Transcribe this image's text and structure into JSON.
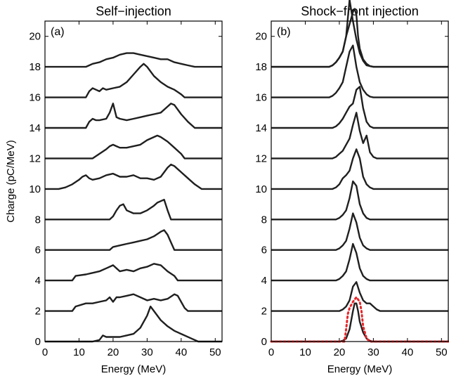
{
  "chart_data": [
    {
      "type": "line",
      "title": "Self−injection",
      "panel_label": "(a)",
      "xlabel": "Energy (MeV)",
      "ylabel": "Charge (pC/MeV)",
      "xlim": [
        0,
        52
      ],
      "ylim": [
        0,
        21
      ],
      "xticks": [
        "0",
        "10",
        "20",
        "30",
        "40",
        "50"
      ],
      "yticks": [
        "0",
        "2",
        "4",
        "6",
        "8",
        "10",
        "12",
        "14",
        "16",
        "18",
        "20"
      ],
      "line_color": "#1f1f1f",
      "series": [
        {
          "offset": 0,
          "x": [
            0,
            14,
            16,
            17,
            18,
            20,
            22,
            24,
            26,
            28,
            30,
            31,
            32,
            34,
            36,
            38,
            40,
            43,
            45,
            52
          ],
          "y": [
            0,
            0,
            0.1,
            0.4,
            0.3,
            0.3,
            0.3,
            0.4,
            0.5,
            0.9,
            1.7,
            2.3,
            2.0,
            1.4,
            1.0,
            0.7,
            0.5,
            0.2,
            0,
            0
          ]
        },
        {
          "offset": 2,
          "x": [
            0,
            8,
            9,
            12,
            14,
            16,
            18,
            19,
            20,
            21,
            22,
            24,
            26,
            28,
            30,
            32,
            34,
            36,
            38,
            39,
            40,
            41,
            42,
            52
          ],
          "y": [
            0,
            0,
            0.3,
            0.5,
            0.5,
            0.6,
            0.7,
            0.9,
            0.6,
            0.9,
            0.9,
            1.0,
            1.1,
            0.9,
            0.7,
            0.8,
            0.7,
            0.8,
            1.1,
            1.0,
            0.6,
            0.2,
            0,
            0
          ]
        },
        {
          "offset": 4,
          "x": [
            0,
            8,
            9,
            12,
            14,
            16,
            18,
            20,
            21,
            22,
            24,
            26,
            28,
            30,
            32,
            34,
            36,
            38,
            39,
            52
          ],
          "y": [
            0,
            0,
            0.3,
            0.4,
            0.5,
            0.6,
            0.8,
            1.0,
            0.8,
            0.6,
            0.7,
            0.6,
            0.8,
            0.9,
            1.1,
            1.0,
            0.6,
            0.3,
            0,
            0
          ]
        },
        {
          "offset": 6,
          "x": [
            0,
            19,
            20,
            22,
            24,
            26,
            28,
            30,
            32,
            34,
            35,
            36,
            37,
            38,
            52
          ],
          "y": [
            0,
            0,
            0.2,
            0.3,
            0.4,
            0.5,
            0.6,
            0.7,
            0.9,
            1.2,
            1.3,
            1.0,
            0.5,
            0,
            0
          ]
        },
        {
          "offset": 8,
          "x": [
            0,
            19,
            20,
            21,
            22,
            23,
            24,
            26,
            28,
            30,
            32,
            33,
            34,
            35,
            36,
            37,
            52
          ],
          "y": [
            0,
            0,
            0.2,
            0.6,
            0.9,
            1.0,
            0.6,
            0.4,
            0.4,
            0.6,
            0.9,
            1.1,
            1.2,
            1.3,
            0.6,
            0,
            0
          ]
        },
        {
          "offset": 10,
          "x": [
            0,
            4,
            6,
            8,
            10,
            11,
            12,
            13,
            14,
            16,
            18,
            20,
            22,
            24,
            26,
            28,
            30,
            32,
            34,
            36,
            37,
            38,
            40,
            42,
            44,
            46,
            52
          ],
          "y": [
            0,
            0,
            0.1,
            0.3,
            0.6,
            0.8,
            0.9,
            0.7,
            0.6,
            0.7,
            0.9,
            1.0,
            0.8,
            0.8,
            0.9,
            0.7,
            0.7,
            0.6,
            0.8,
            1.4,
            1.6,
            1.5,
            1.1,
            0.7,
            0.3,
            0,
            0
          ]
        },
        {
          "offset": 12,
          "x": [
            0,
            14,
            16,
            18,
            19,
            20,
            21,
            22,
            24,
            26,
            28,
            30,
            32,
            33,
            34,
            36,
            38,
            40,
            41,
            52
          ],
          "y": [
            0,
            0,
            0.3,
            0.6,
            0.8,
            0.9,
            0.8,
            0.7,
            0.7,
            0.8,
            0.9,
            1.2,
            1.4,
            1.5,
            1.4,
            1.1,
            0.7,
            0.3,
            0,
            0
          ]
        },
        {
          "offset": 14,
          "x": [
            0,
            12,
            13,
            14,
            15,
            16,
            18,
            19,
            20,
            21,
            22,
            24,
            26,
            28,
            30,
            32,
            34,
            36,
            37,
            38,
            40,
            42,
            44,
            52
          ],
          "y": [
            0,
            0,
            0.4,
            0.6,
            0.5,
            0.5,
            0.6,
            1.0,
            1.6,
            0.7,
            0.6,
            0.5,
            0.6,
            0.7,
            0.8,
            0.9,
            1.0,
            1.4,
            1.6,
            1.5,
            0.9,
            0.4,
            0,
            0
          ]
        },
        {
          "offset": 16,
          "x": [
            0,
            12,
            13,
            14,
            15,
            16,
            17,
            18,
            20,
            22,
            24,
            26,
            28,
            29,
            30,
            32,
            34,
            36,
            38,
            40,
            41,
            52
          ],
          "y": [
            0,
            0,
            0.4,
            0.6,
            0.5,
            0.4,
            0.6,
            0.5,
            0.6,
            0.7,
            1.0,
            1.5,
            2.0,
            2.2,
            2.0,
            1.4,
            1.0,
            0.7,
            0.5,
            0.2,
            0,
            0
          ]
        },
        {
          "offset": 18,
          "x": [
            0,
            12,
            13,
            14,
            16,
            18,
            20,
            22,
            24,
            26,
            28,
            30,
            32,
            34,
            36,
            38,
            40,
            42,
            44,
            46,
            52
          ],
          "y": [
            0,
            0,
            0.1,
            0.2,
            0.3,
            0.5,
            0.6,
            0.8,
            0.9,
            0.9,
            0.8,
            0.7,
            0.6,
            0.5,
            0.5,
            0.3,
            0.2,
            0.1,
            0,
            0,
            0
          ]
        }
      ]
    },
    {
      "type": "line",
      "title": "Shock−front injection",
      "panel_label": "(b)",
      "xlabel": "Energy (MeV)",
      "ylabel": "",
      "xlim": [
        0,
        52
      ],
      "ylim": [
        0,
        21
      ],
      "xticks": [
        "0",
        "10",
        "20",
        "30",
        "40",
        "50"
      ],
      "yticks": [
        "0",
        "2",
        "4",
        "6",
        "8",
        "10",
        "12",
        "14",
        "16",
        "18",
        "20"
      ],
      "line_color": "#1f1f1f",
      "dotted_color": "#e8262a",
      "series": [
        {
          "offset": 0,
          "x": [
            0,
            20,
            21,
            22,
            23,
            24,
            24.5,
            25,
            25.5,
            26,
            27,
            28,
            29,
            30,
            31,
            32,
            52
          ],
          "y": [
            0,
            0,
            0.05,
            0.2,
            0.8,
            2.0,
            2.5,
            2.5,
            2.0,
            1.3,
            0.6,
            0.2,
            0.05,
            0,
            0,
            0,
            0
          ]
        },
        {
          "offset": 2,
          "x": [
            0,
            20,
            21,
            22,
            23,
            24,
            25,
            26,
            27,
            28,
            29,
            30,
            31,
            32,
            52
          ],
          "y": [
            0,
            0,
            0.1,
            0.3,
            0.7,
            1.6,
            1.9,
            1.2,
            0.7,
            0.5,
            0.5,
            0.3,
            0.1,
            0,
            0
          ]
        },
        {
          "offset": 4,
          "x": [
            0,
            19,
            20,
            21,
            22,
            23,
            24,
            25,
            26,
            27,
            28,
            29,
            52
          ],
          "y": [
            0,
            0,
            0.1,
            0.3,
            0.6,
            1.4,
            2.4,
            1.8,
            0.8,
            0.3,
            0.1,
            0,
            0
          ]
        },
        {
          "offset": 6,
          "x": [
            0,
            19,
            20,
            21,
            22,
            23,
            24,
            25,
            26,
            27,
            28,
            29,
            52
          ],
          "y": [
            0,
            0,
            0.1,
            0.3,
            0.6,
            1.4,
            2.4,
            1.8,
            0.8,
            0.3,
            0.1,
            0,
            0
          ]
        },
        {
          "offset": 8,
          "x": [
            0,
            19,
            20,
            21,
            22,
            23,
            24,
            25,
            26,
            27,
            28,
            29,
            52
          ],
          "y": [
            0,
            0,
            0.1,
            0.3,
            0.6,
            1.4,
            2.5,
            2.2,
            1.0,
            0.4,
            0.1,
            0,
            0
          ]
        },
        {
          "offset": 10,
          "x": [
            0,
            18,
            19,
            20,
            21,
            22,
            23,
            24,
            25,
            26,
            27,
            28,
            29,
            30,
            52
          ],
          "y": [
            0,
            0,
            0.1,
            0.3,
            0.7,
            0.9,
            1.2,
            2.0,
            2.6,
            2.0,
            0.8,
            0.3,
            0.1,
            0,
            0
          ]
        },
        {
          "offset": 12,
          "x": [
            0,
            18,
            19,
            20,
            21,
            22,
            23,
            24,
            25,
            26,
            27,
            28,
            29,
            30,
            31,
            52
          ],
          "y": [
            0,
            0,
            0.1,
            0.3,
            0.5,
            0.9,
            1.3,
            2.2,
            3.0,
            1.8,
            1.0,
            1.5,
            0.4,
            0.1,
            0,
            0
          ]
        },
        {
          "offset": 14,
          "x": [
            0,
            18,
            19,
            20,
            21,
            22,
            23,
            24,
            25,
            26,
            27,
            28,
            29,
            30,
            52
          ],
          "y": [
            0,
            0,
            0.1,
            0.3,
            0.6,
            1.0,
            1.4,
            1.6,
            2.5,
            2.7,
            1.3,
            0.4,
            0.1,
            0,
            0
          ]
        },
        {
          "offset": 16,
          "x": [
            0,
            17,
            18,
            19,
            20,
            21,
            22,
            23,
            24,
            25,
            26,
            27,
            28,
            29,
            30,
            52
          ],
          "y": [
            0,
            0,
            0.1,
            0.3,
            0.6,
            1.0,
            2.0,
            3.0,
            3.4,
            2.0,
            1.0,
            0.5,
            0.2,
            0.05,
            0,
            0
          ]
        },
        {
          "offset": 18,
          "x": [
            0,
            17,
            18,
            19,
            20,
            21,
            22,
            23,
            24,
            25,
            26,
            27,
            28,
            29,
            30,
            52
          ],
          "y": [
            0,
            0,
            0.1,
            0.3,
            0.6,
            1.0,
            2.0,
            4.4,
            3.0,
            1.8,
            0.9,
            0.4,
            0.1,
            0.05,
            0,
            0
          ]
        },
        {
          "offset": 18,
          "x": [
            0,
            17,
            18,
            19,
            20,
            21,
            22,
            23,
            24,
            24.5,
            25,
            25.5,
            26,
            27,
            28,
            29,
            30,
            52
          ],
          "y": [
            0,
            0,
            0.1,
            0.3,
            0.6,
            1.0,
            2.0,
            2.8,
            3.6,
            3.8,
            3.4,
            2.0,
            1.2,
            0.5,
            0.2,
            0.05,
            0,
            0
          ]
        }
      ],
      "dotted_series": {
        "offset": 0,
        "x": [
          0,
          21.5,
          22,
          22.5,
          23,
          23.5,
          24,
          25,
          26,
          26.5,
          27,
          28,
          29,
          52
        ],
        "y": [
          0,
          0,
          0.8,
          1.8,
          2.2,
          2.4,
          2.6,
          2.9,
          2.6,
          2.0,
          1.0,
          0.2,
          0,
          0
        ]
      }
    }
  ]
}
